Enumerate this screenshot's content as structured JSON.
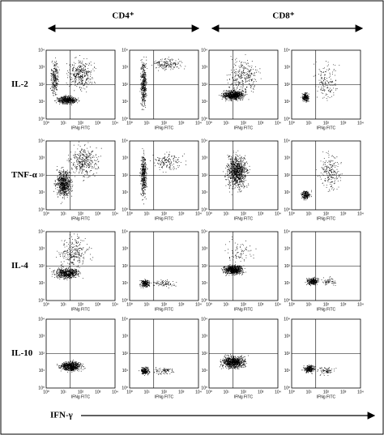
{
  "column_headers": [
    "CD4⁺",
    "CD8⁺"
  ],
  "row_labels": [
    "IL-2",
    "TNF-α",
    "IL-4",
    "IL-10"
  ],
  "panel_axis": {
    "label": "IFNg FITC",
    "ticks": [
      "10⁰",
      "10¹",
      "10²",
      "10³",
      "10⁴"
    ]
  },
  "x_axis_label": "IFN-γ"
}
